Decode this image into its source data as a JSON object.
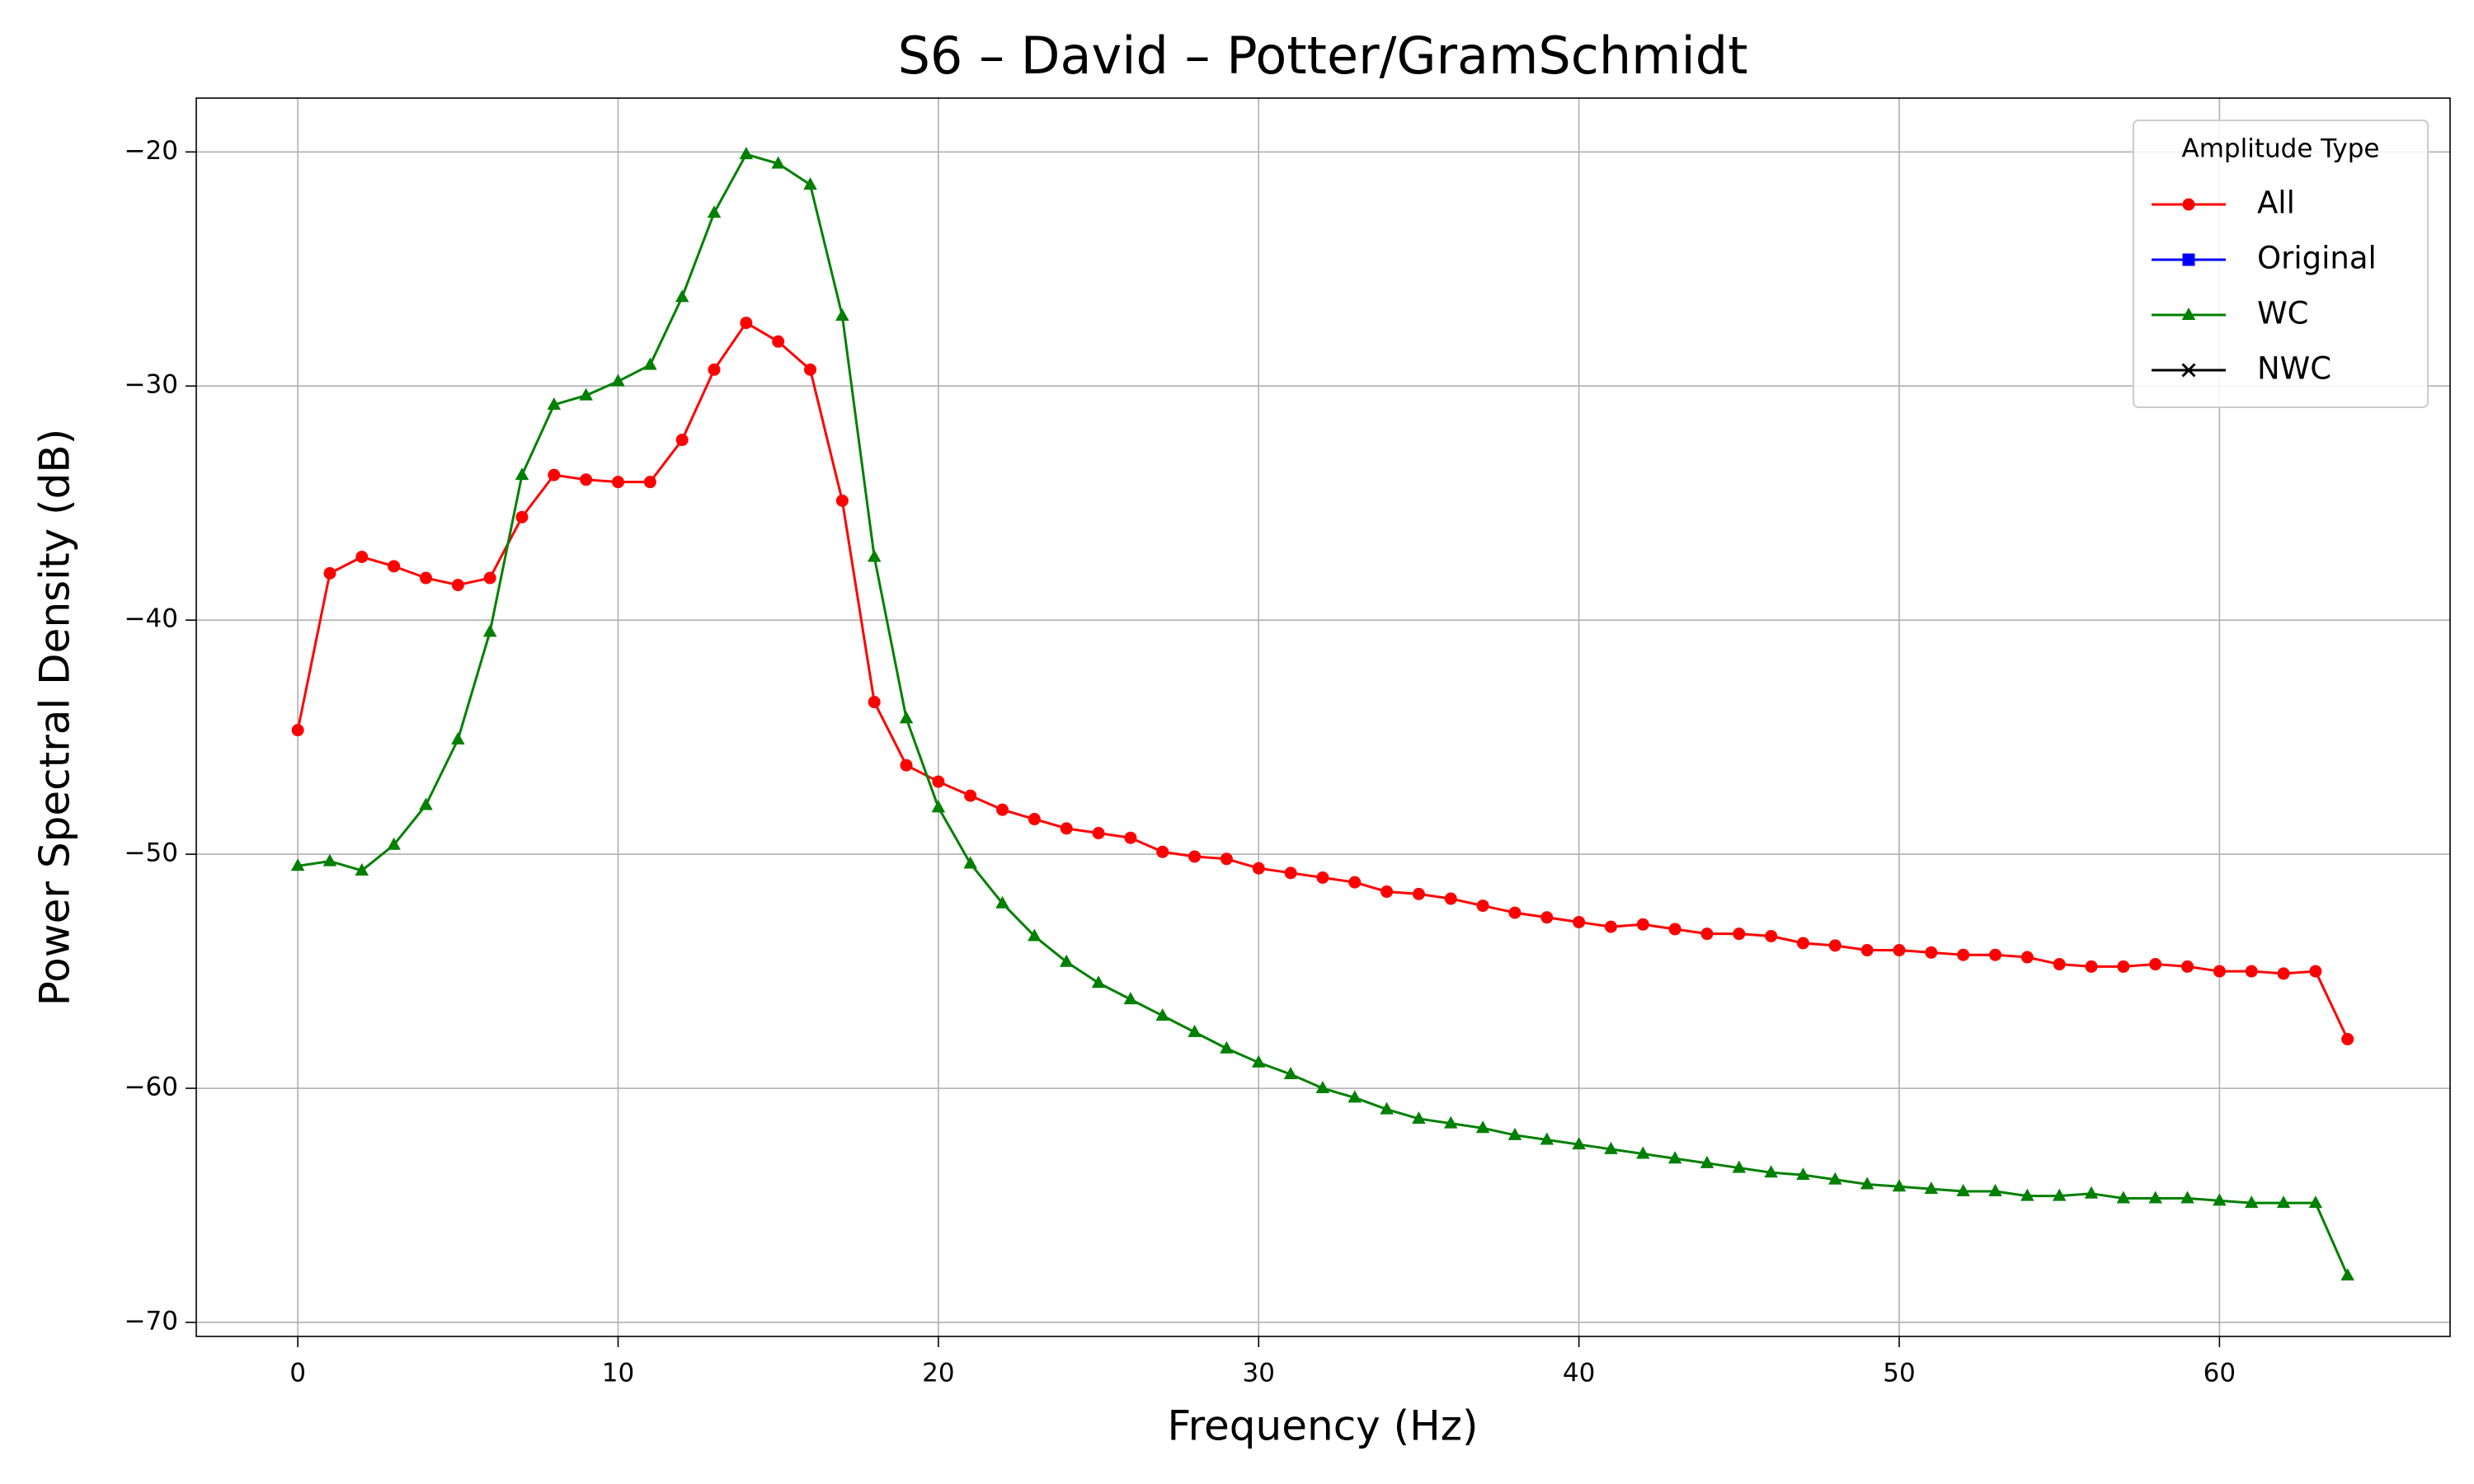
{
  "chart_data": {
    "type": "line",
    "title": "S6 – David – Potter/GramSchmidt",
    "xlabel": "Frequency (Hz)",
    "ylabel": "Power Spectral Density (dB)",
    "x": [
      0,
      1,
      2,
      3,
      4,
      5,
      6,
      7,
      8,
      9,
      10,
      11,
      12,
      13,
      14,
      15,
      16,
      17,
      18,
      19,
      20,
      21,
      22,
      23,
      24,
      25,
      26,
      27,
      28,
      29,
      30,
      31,
      32,
      33,
      34,
      35,
      36,
      37,
      38,
      39,
      40,
      41,
      42,
      43,
      44,
      45,
      46,
      47,
      48,
      49,
      50,
      51,
      52,
      53,
      54,
      55,
      56,
      57,
      58,
      59,
      60,
      61,
      62,
      63,
      64
    ],
    "series": [
      {
        "name": "All",
        "color": "#ff0000",
        "marker": "o",
        "values": [
          -44.7,
          -38.0,
          -37.3,
          -37.7,
          -38.2,
          -38.5,
          -38.2,
          -35.6,
          -33.8,
          -34.0,
          -34.1,
          -34.1,
          -32.3,
          -29.3,
          -27.3,
          -28.1,
          -29.3,
          -34.9,
          -43.5,
          -46.2,
          -46.9,
          -47.5,
          -48.1,
          -48.5,
          -48.9,
          -49.1,
          -49.3,
          -49.9,
          -50.1,
          -50.2,
          -50.6,
          -50.8,
          -51.0,
          -51.2,
          -51.6,
          -51.7,
          -51.9,
          -52.2,
          -52.5,
          -52.7,
          -52.9,
          -53.1,
          -53.0,
          -53.2,
          -53.4,
          -53.4,
          -53.5,
          -53.8,
          -53.9,
          -54.1,
          -54.1,
          -54.2,
          -54.3,
          -54.3,
          -54.4,
          -54.7,
          -54.8,
          -54.8,
          -54.7,
          -54.8,
          -55.0,
          -55.0,
          -55.1,
          -55.0,
          -57.9
        ]
      },
      {
        "name": "Original",
        "color": "#0000ff",
        "marker": "s",
        "values": [
          null,
          null,
          null,
          null,
          null,
          null,
          null,
          null,
          null,
          null,
          null,
          null,
          null,
          null,
          null,
          null,
          null,
          null,
          null,
          null,
          null,
          null,
          null,
          null,
          null,
          null,
          null,
          null,
          null,
          null,
          null,
          null,
          null,
          null,
          null,
          null,
          null,
          null,
          null,
          null,
          null,
          null,
          null,
          null,
          null,
          null,
          null,
          null,
          null,
          null,
          null,
          null,
          null,
          null,
          null,
          null,
          null,
          null,
          null,
          null,
          null,
          null,
          null,
          null,
          null
        ]
      },
      {
        "name": "WC",
        "color": "#008000",
        "marker": "^",
        "values": [
          -50.5,
          -50.3,
          -50.7,
          -49.6,
          -47.9,
          -45.1,
          -40.5,
          -33.8,
          -30.8,
          -30.4,
          -29.8,
          -29.1,
          -26.2,
          -22.6,
          -20.1,
          -20.5,
          -21.4,
          -27.0,
          -37.3,
          -44.2,
          -48.0,
          -50.4,
          -52.1,
          -53.5,
          -54.6,
          -55.5,
          -56.2,
          -56.9,
          -57.6,
          -58.3,
          -58.9,
          -59.4,
          -60.0,
          -60.4,
          -60.9,
          -61.3,
          -61.5,
          -61.7,
          -62.0,
          -62.2,
          -62.4,
          -62.6,
          -62.8,
          -63.0,
          -63.2,
          -63.4,
          -63.6,
          -63.7,
          -63.9,
          -64.1,
          -64.2,
          -64.3,
          -64.4,
          -64.4,
          -64.6,
          -64.6,
          -64.5,
          -64.7,
          -64.7,
          -64.7,
          -64.8,
          -64.9,
          -64.9,
          -64.9,
          -68.0
        ]
      },
      {
        "name": "NWC",
        "color": "#000000",
        "marker": "x",
        "values": [
          null,
          null,
          null,
          null,
          null,
          null,
          null,
          null,
          null,
          null,
          null,
          null,
          null,
          null,
          null,
          null,
          null,
          null,
          null,
          null,
          null,
          null,
          null,
          null,
          null,
          null,
          null,
          null,
          null,
          null,
          null,
          null,
          null,
          null,
          null,
          null,
          null,
          null,
          null,
          null,
          null,
          null,
          null,
          null,
          null,
          null,
          null,
          null,
          null,
          null,
          null,
          null,
          null,
          null,
          null,
          null,
          null,
          null,
          null,
          null,
          null,
          null,
          null,
          null,
          null
        ]
      }
    ],
    "xlim": [
      -3.17,
      67.2
    ],
    "ylim": [
      -70.6,
      -17.7
    ],
    "xticks": [
      0,
      10,
      20,
      30,
      40,
      50,
      60
    ],
    "yticks": [
      {
        "value": -70,
        "label": "−70"
      },
      {
        "value": -60,
        "label": "−60"
      },
      {
        "value": -50,
        "label": "−50"
      },
      {
        "value": -40,
        "label": "−40"
      },
      {
        "value": -30,
        "label": "−30"
      },
      {
        "value": -20,
        "label": "−20"
      }
    ],
    "grid": true,
    "legend_title": "Amplitude Type",
    "legend_loc": "upper right"
  }
}
